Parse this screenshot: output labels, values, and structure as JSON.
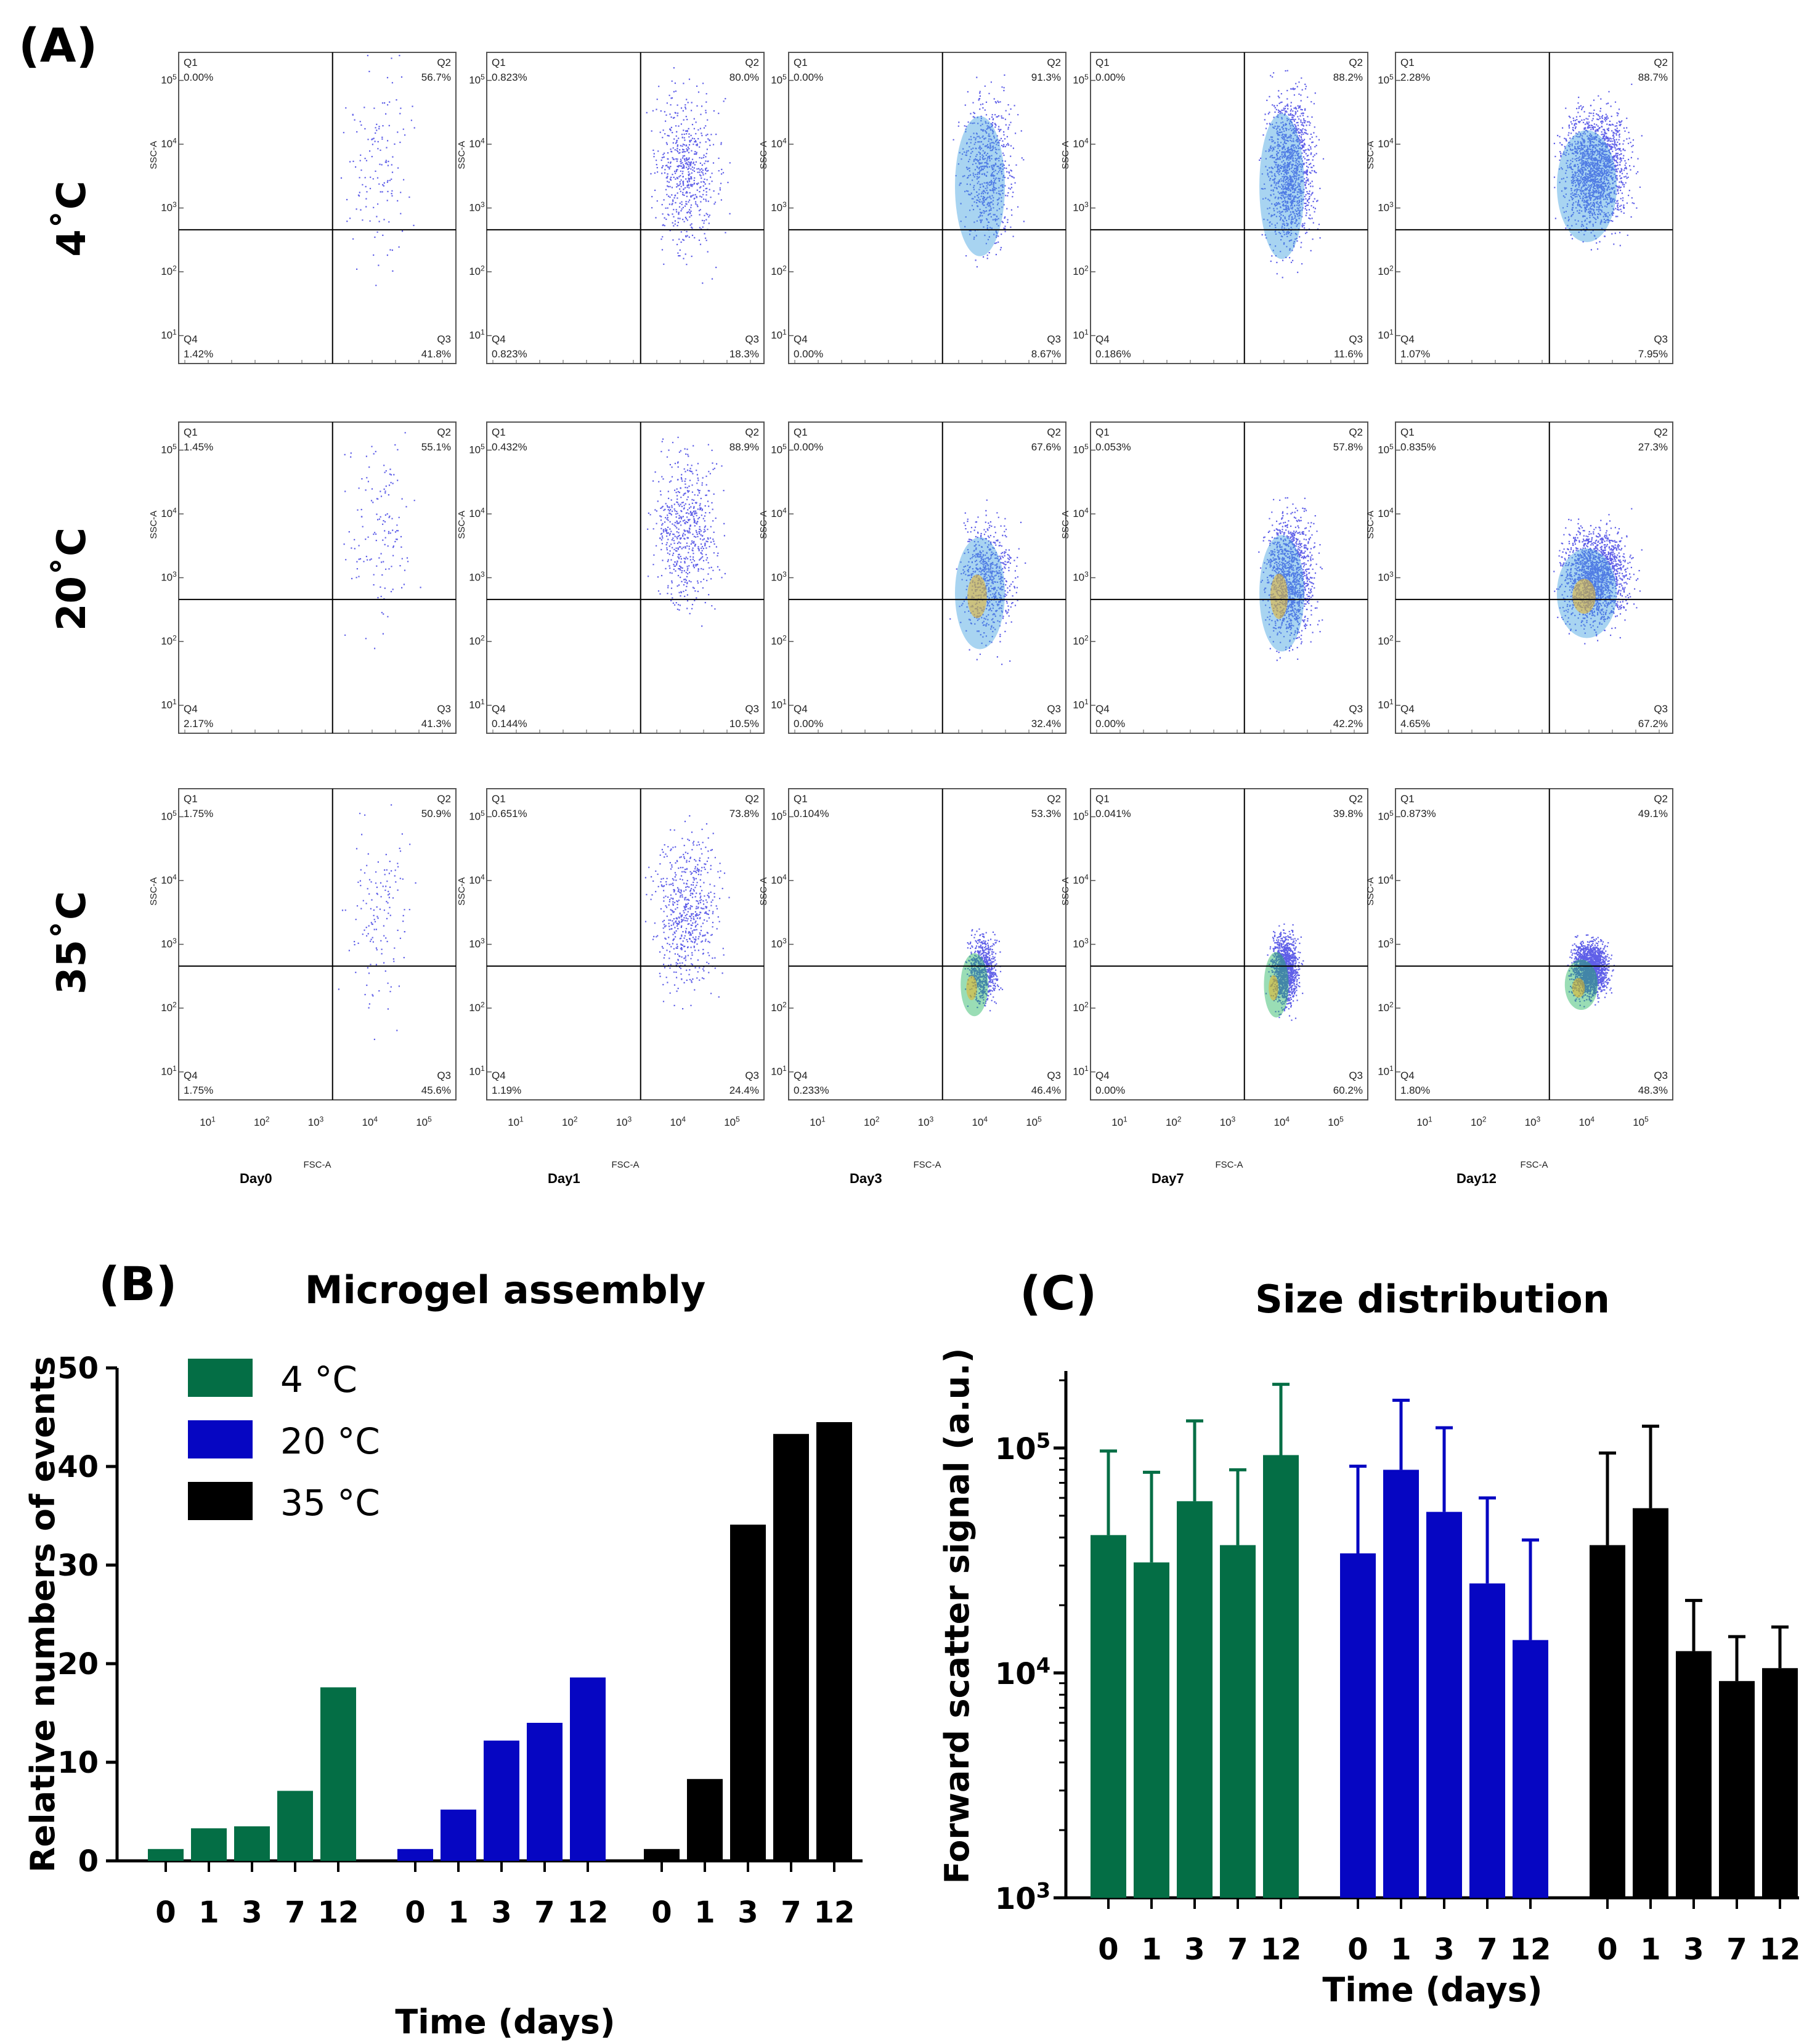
{
  "figure_labels": {
    "A": "(A)",
    "B": "(B)",
    "C": "(C)"
  },
  "flow": {
    "rows": [
      "4˚C",
      "20˚C",
      "35˚C"
    ],
    "days": [
      "Day0",
      "Day1",
      "Day3",
      "Day7",
      "Day12"
    ],
    "x_axis_label": "FSC-A",
    "y_axis_label": "SSC-A",
    "log_tick_exponents": [
      "1",
      "2",
      "3",
      "4",
      "5"
    ],
    "quadrant_names": [
      "Q1",
      "Q2",
      "Q3",
      "Q4"
    ],
    "panels": [
      [
        {
          "q1": "0.00%",
          "q2": "56.7%",
          "q3": "41.8%",
          "q4": "1.42%"
        },
        {
          "q1": "0.823%",
          "q2": "80.0%",
          "q3": "18.3%",
          "q4": "0.823%"
        },
        {
          "q1": "0.00%",
          "q2": "91.3%",
          "q3": "8.67%",
          "q4": "0.00%"
        },
        {
          "q1": "0.00%",
          "q2": "88.2%",
          "q3": "11.6%",
          "q4": "0.186%"
        },
        {
          "q1": "2.28%",
          "q2": "88.7%",
          "q3": "7.95%",
          "q4": "1.07%"
        }
      ],
      [
        {
          "q1": "1.45%",
          "q2": "55.1%",
          "q3": "41.3%",
          "q4": "2.17%"
        },
        {
          "q1": "0.432%",
          "q2": "88.9%",
          "q3": "10.5%",
          "q4": "0.144%"
        },
        {
          "q1": "0.00%",
          "q2": "67.6%",
          "q3": "32.4%",
          "q4": "0.00%"
        },
        {
          "q1": "0.053%",
          "q2": "57.8%",
          "q3": "42.2%",
          "q4": "0.00%"
        },
        {
          "q1": "0.835%",
          "q2": "27.3%",
          "q3": "67.2%",
          "q4": "4.65%"
        }
      ],
      [
        {
          "q1": "1.75%",
          "q2": "50.9%",
          "q3": "45.6%",
          "q4": "1.75%"
        },
        {
          "q1": "0.651%",
          "q2": "73.8%",
          "q3": "24.4%",
          "q4": "1.19%"
        },
        {
          "q1": "0.104%",
          "q2": "53.3%",
          "q3": "46.4%",
          "q4": "0.233%"
        },
        {
          "q1": "0.041%",
          "q2": "39.8%",
          "q3": "60.2%",
          "q4": "0.00%"
        },
        {
          "q1": "0.873%",
          "q2": "49.1%",
          "q3": "48.3%",
          "q4": "1.80%"
        }
      ]
    ]
  },
  "chart_data": [
    {
      "type": "bar",
      "title": "Microgel assembly",
      "xlabel": "Time (days)",
      "ylabel": "Relative numbers of events",
      "categories": [
        "0",
        "1",
        "3",
        "7",
        "12"
      ],
      "ylim": [
        0,
        50
      ],
      "yticks": [
        "0",
        "10",
        "20",
        "30",
        "40",
        "50"
      ],
      "legend": "top-left",
      "series": [
        {
          "name": "4 °C",
          "color": "#046e45",
          "values": [
            1.2,
            3.3,
            3.5,
            7.1,
            17.6
          ]
        },
        {
          "name": "20 °C",
          "color": "#0606c2",
          "values": [
            1.2,
            5.2,
            12.2,
            14.0,
            18.6
          ]
        },
        {
          "name": "35 °C",
          "color": "#000000",
          "values": [
            1.2,
            8.3,
            34.1,
            43.3,
            44.5
          ]
        }
      ]
    },
    {
      "type": "bar",
      "title": "Size distribution",
      "xlabel": "Time (days)",
      "ylabel": "Forward scatter signal (a.u.)",
      "categories": [
        "0",
        "1",
        "3",
        "7",
        "12"
      ],
      "yscale": "log",
      "ylim": [
        1000,
        220000
      ],
      "ytick_bases": [
        "10",
        "10",
        "10"
      ],
      "ytick_exponents": [
        "3",
        "4",
        "5"
      ],
      "series": [
        {
          "name": "4 °C",
          "color": "#046e45",
          "values": [
            41000,
            31000,
            58000,
            37000,
            93000
          ],
          "error_upper": [
            97000,
            78000,
            132000,
            80000,
            192000
          ]
        },
        {
          "name": "20 °C",
          "color": "#0606c2",
          "values": [
            34000,
            80000,
            52000,
            25000,
            14000
          ],
          "error_upper": [
            83000,
            163000,
            123000,
            60000,
            39000
          ]
        },
        {
          "name": "35 °C",
          "color": "#000000",
          "values": [
            37000,
            54000,
            12500,
            9200,
            10500
          ],
          "error_upper": [
            95000,
            125000,
            21000,
            14500,
            16000
          ]
        }
      ]
    }
  ]
}
